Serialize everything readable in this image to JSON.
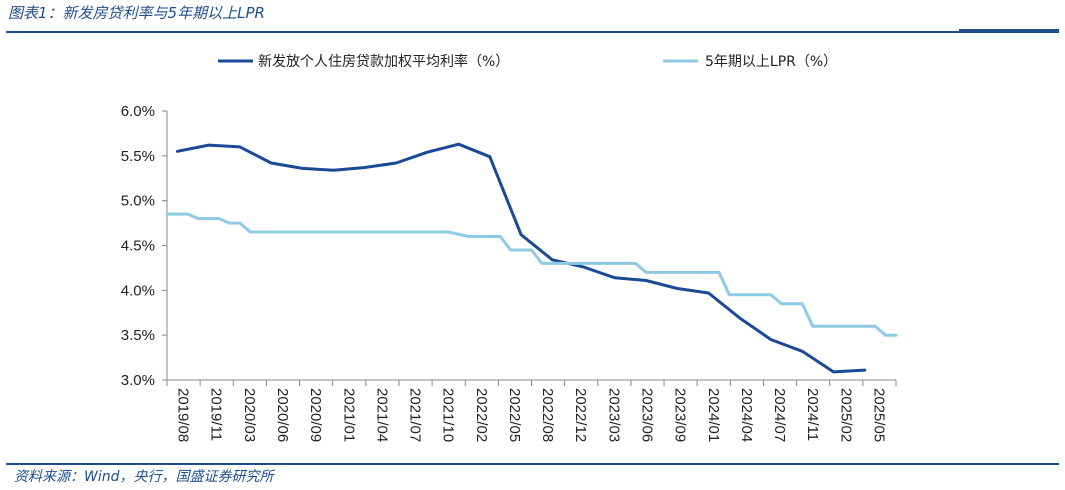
{
  "header": {
    "title": "图表1：新发房贷利率与5年期以上LPR"
  },
  "footer": {
    "source": "资料来源：Wind，央行，国盛证券研究所"
  },
  "chart_data": {
    "type": "line",
    "title": "",
    "xlabel": "",
    "ylabel": "",
    "ylim": [
      3.0,
      6.0
    ],
    "y_ticks": [
      "6.0%",
      "5.5%",
      "5.0%",
      "4.5%",
      "4.0%",
      "3.5%",
      "3.0%"
    ],
    "x_tick_labels": [
      "2019/08",
      "2019/11",
      "2020/03",
      "2020/06",
      "2020/09",
      "2021/01",
      "2021/04",
      "2021/07",
      "2021/10",
      "2022/02",
      "2022/05",
      "2022/08",
      "2022/12",
      "2023/03",
      "2023/06",
      "2023/09",
      "2024/01",
      "2024/04",
      "2024/07",
      "2024/11",
      "2025/02",
      "2025/05"
    ],
    "x_range": [
      "2019-08",
      "2025-06"
    ],
    "grid": false,
    "legend_position": "top",
    "series": [
      {
        "name": "新发放个人住房贷款加权平均利率（%）",
        "color": "#1a4a96",
        "style": "line",
        "points": [
          [
            "2019-09",
            5.55
          ],
          [
            "2019-12",
            5.62
          ],
          [
            "2020-03",
            5.6
          ],
          [
            "2020-06",
            5.42
          ],
          [
            "2020-09",
            5.36
          ],
          [
            "2020-12",
            5.34
          ],
          [
            "2021-03",
            5.37
          ],
          [
            "2021-06",
            5.42
          ],
          [
            "2021-09",
            5.54
          ],
          [
            "2021-12",
            5.63
          ],
          [
            "2022-03",
            5.49
          ],
          [
            "2022-06",
            4.62
          ],
          [
            "2022-09",
            4.34
          ],
          [
            "2022-12",
            4.26
          ],
          [
            "2023-03",
            4.14
          ],
          [
            "2023-06",
            4.11
          ],
          [
            "2023-09",
            4.02
          ],
          [
            "2023-12",
            3.97
          ],
          [
            "2024-03",
            3.69
          ],
          [
            "2024-06",
            3.45
          ],
          [
            "2024-09",
            3.32
          ],
          [
            "2024-12",
            3.09
          ],
          [
            "2025-03",
            3.11
          ]
        ]
      },
      {
        "name": "5年期以上LPR（%）",
        "color": "#8ecae6",
        "style": "step",
        "points": [
          [
            "2019-08",
            4.85
          ],
          [
            "2019-10",
            4.85
          ],
          [
            "2019-11",
            4.8
          ],
          [
            "2020-01",
            4.8
          ],
          [
            "2020-02",
            4.75
          ],
          [
            "2020-03",
            4.75
          ],
          [
            "2020-04",
            4.65
          ],
          [
            "2021-11",
            4.65
          ],
          [
            "2022-01",
            4.6
          ],
          [
            "2022-04",
            4.6
          ],
          [
            "2022-05",
            4.45
          ],
          [
            "2022-07",
            4.45
          ],
          [
            "2022-08",
            4.3
          ],
          [
            "2023-05",
            4.3
          ],
          [
            "2023-06",
            4.2
          ],
          [
            "2024-01",
            4.2
          ],
          [
            "2024-02",
            3.95
          ],
          [
            "2024-06",
            3.95
          ],
          [
            "2024-07",
            3.85
          ],
          [
            "2024-09",
            3.85
          ],
          [
            "2024-10",
            3.6
          ],
          [
            "2025-04",
            3.6
          ],
          [
            "2025-05",
            3.5
          ],
          [
            "2025-06",
            3.5
          ]
        ]
      }
    ]
  }
}
